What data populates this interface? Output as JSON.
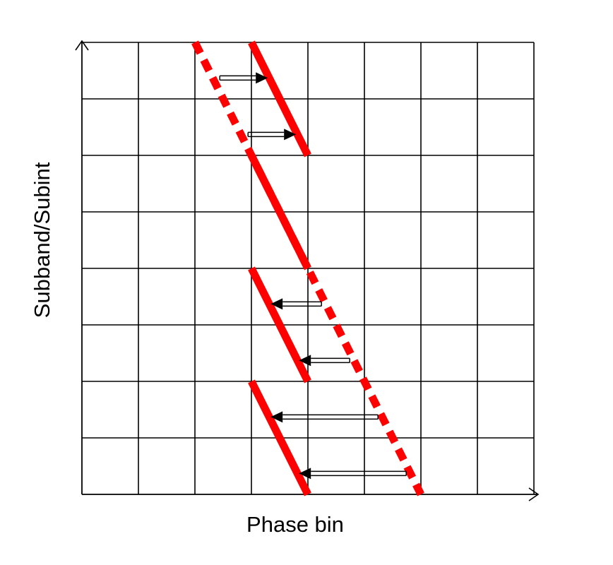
{
  "diagram": {
    "x_axis_label": "Phase bin",
    "y_axis_label": "Subband/Subint",
    "grid": {
      "columns": 8,
      "rows": 8
    },
    "colors": {
      "grid": "#000000",
      "line": "#ff0000",
      "arrow": "#000000",
      "background": "#ffffff"
    },
    "dashed_line": {
      "style": "dashed",
      "from_cell": [
        2,
        0
      ],
      "to_cell": [
        6,
        8
      ]
    },
    "segments": [
      {
        "style": "solid",
        "from_cell": [
          3,
          0
        ],
        "to_cell": [
          4,
          2
        ]
      },
      {
        "style": "solid",
        "from_cell": [
          3,
          2
        ],
        "to_cell": [
          4,
          4
        ]
      },
      {
        "style": "solid",
        "from_cell": [
          3,
          4
        ],
        "to_cell": [
          4,
          6
        ]
      },
      {
        "style": "solid",
        "from_cell": [
          3,
          6
        ],
        "to_cell": [
          4,
          8
        ]
      }
    ],
    "shift_arrows": [
      {
        "direction": "right",
        "row": 0
      },
      {
        "direction": "right",
        "row": 1
      },
      {
        "direction": "left",
        "row": 4
      },
      {
        "direction": "left",
        "row": 5
      },
      {
        "direction": "left",
        "row": 6
      },
      {
        "direction": "left",
        "row": 7
      }
    ]
  }
}
